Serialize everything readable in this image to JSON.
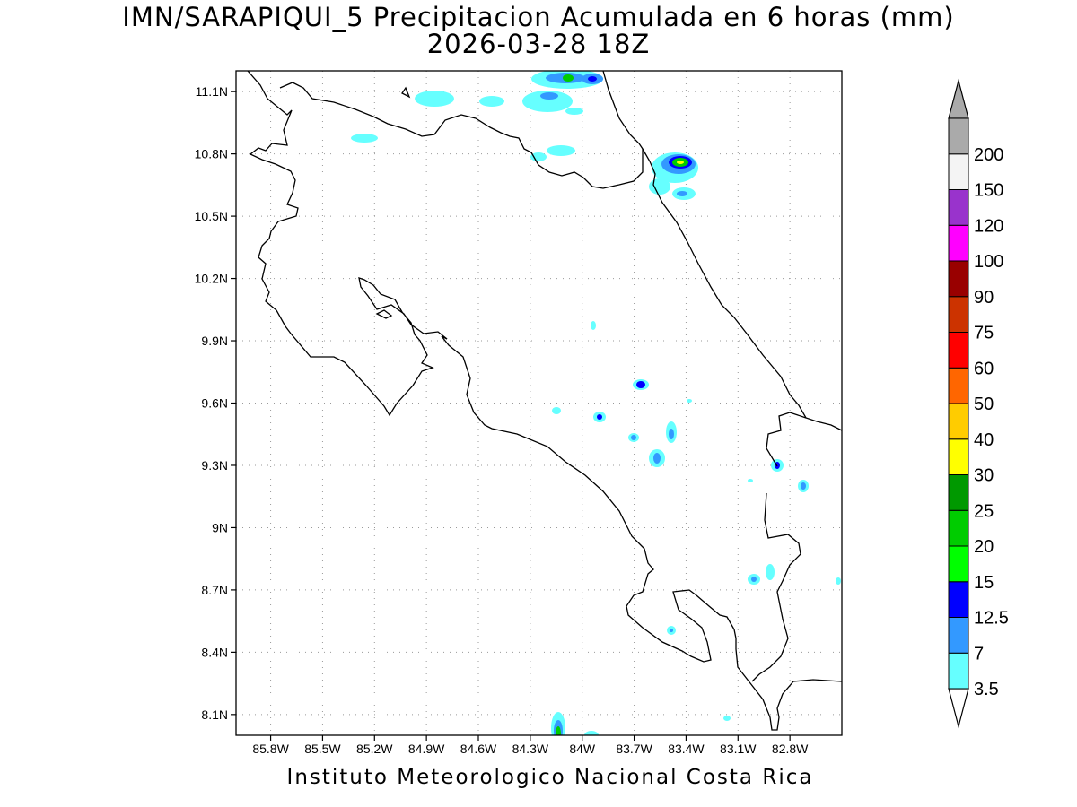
{
  "title": {
    "line1": "IMN/SARAPIQUI_5 Precipitacion Acumulada en 6 horas (mm)",
    "line2": "2026-03-28 18Z"
  },
  "axes": {
    "lon_labels": [
      "85.8W",
      "85.5W",
      "85.2W",
      "84.9W",
      "84.6W",
      "84.3W",
      "84W",
      "83.7W",
      "83.4W",
      "83.1W",
      "82.8W"
    ],
    "lat_labels": [
      "11.1N",
      "10.8N",
      "10.5N",
      "10.2N",
      "9.9N",
      "9.6N",
      "9.3N",
      "9N",
      "8.7N",
      "8.4N",
      "8.1N"
    ],
    "lon_range": [
      -86.0,
      -82.5
    ],
    "lat_range": [
      8.0,
      11.2
    ],
    "grid": "dotted"
  },
  "colorbar": {
    "levels": [
      "3.5",
      "7",
      "12.5",
      "15",
      "20",
      "25",
      "30",
      "40",
      "50",
      "60",
      "75",
      "90",
      "100",
      "120",
      "150",
      "200"
    ],
    "colors": [
      "#66ffff",
      "#3399ff",
      "#0000ff",
      "#00ff00",
      "#00cc00",
      "#009900",
      "#ffff00",
      "#ffcc00",
      "#ff6600",
      "#ff0000",
      "#cc3300",
      "#990000",
      "#ff00ff",
      "#9933cc",
      "#f4f4f4",
      "#aaaaaa"
    ],
    "under_color": "#ffffff",
    "over_color": "#aaaaaa"
  },
  "footer": "Instituto Meteorologico Nacional Costa Rica"
}
